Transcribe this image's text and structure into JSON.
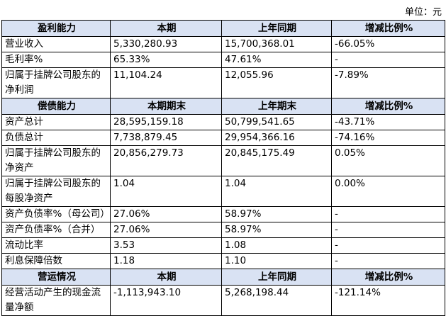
{
  "unit": "单位：元",
  "sections": [
    {
      "headers": [
        "盈利能力",
        "本期",
        "上年同期",
        "增减比例%"
      ],
      "rows": [
        [
          "营业收入",
          "5,330,280.93",
          "15,700,368.01",
          "-66.05%"
        ],
        [
          "毛利率%",
          "65.33%",
          "47.61%",
          "-"
        ],
        [
          "归属于挂牌公司股东的净利润",
          "11,104.24",
          "12,055.96",
          "-7.89%"
        ]
      ]
    },
    {
      "headers": [
        "偿债能力",
        "本期期末",
        "上年期末",
        "增减比例%"
      ],
      "rows": [
        [
          "资产总计",
          "28,595,159.18",
          "50,799,541.65",
          "-43.71%"
        ],
        [
          "负债总计",
          "7,738,879.45",
          "29,954,366.16",
          "-74.16%"
        ],
        [
          "归属于挂牌公司股东的净资产",
          "20,856,279.73",
          "20,845,175.49",
          "0.05%"
        ],
        [
          "归属于挂牌公司股东的每股净资产",
          "1.04",
          "1.04",
          "0.00%"
        ],
        [
          "资产负债率%（母公司）",
          "27.06%",
          "58.97%",
          "-"
        ],
        [
          "资产负债率%（合并）",
          "27.06%",
          "58.97%",
          "-"
        ],
        [
          "流动比率",
          "3.53",
          "1.08",
          "-"
        ],
        [
          "利息保障倍数",
          "1.18",
          "1.10",
          "-"
        ]
      ]
    },
    {
      "headers": [
        "营运情况",
        "本期",
        "上年同期",
        "增减比例%"
      ],
      "rows": [
        [
          "经营活动产生的现金流量净额",
          "-1,113,943.10",
          "5,268,198.44",
          "-121.14%"
        ]
      ]
    }
  ]
}
